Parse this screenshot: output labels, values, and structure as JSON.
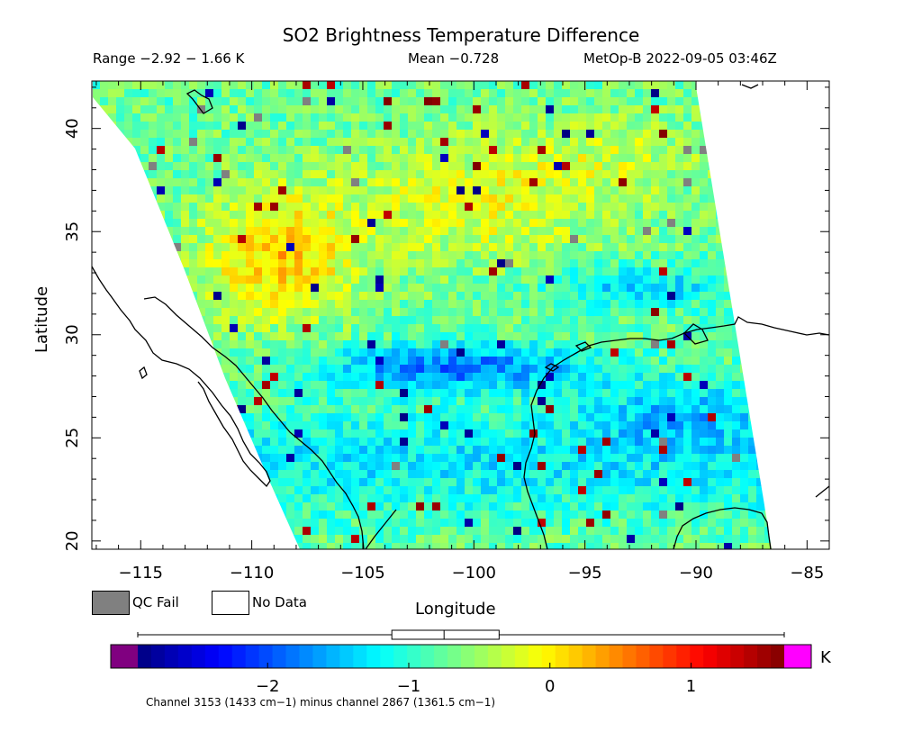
{
  "title": "SO2 Brightness Temperature Difference",
  "subtitle": {
    "range": "Range −2.92 − 1.66 K",
    "mean": "Mean −0.728",
    "satellite": "MetOp-B 2022-09-05 03:46Z"
  },
  "axes": {
    "xlabel": "Longitude",
    "ylabel": "Latitude",
    "x_ticks": [
      "−115",
      "−110",
      "−105",
      "−100",
      "−95",
      "−90",
      "−85"
    ],
    "x_tick_values": [
      -115,
      -110,
      -105,
      -100,
      -95,
      -90,
      -85
    ],
    "y_ticks": [
      "20",
      "25",
      "30",
      "35",
      "40"
    ],
    "y_tick_values": [
      20,
      25,
      30,
      35,
      40
    ],
    "lon_range": [
      -117.2,
      -84.0
    ],
    "lat_range": [
      19.6,
      42.3
    ]
  },
  "legend": {
    "qc_fail": "QC Fail",
    "no_data": "No Data",
    "qc_fail_color": "#808080",
    "no_data_color": "#ffffff"
  },
  "colorbar": {
    "unit": "K",
    "range": [
      -2.92,
      1.66
    ],
    "tick_labels": [
      "−2",
      "−1",
      "0",
      "1"
    ],
    "tick_values": [
      -2,
      -1,
      0,
      1
    ],
    "underflow_color": "#800080",
    "overflow_color": "#ff00ff",
    "boxplot": {
      "min": -2.92,
      "q1": -1.12,
      "median": -0.75,
      "q3": -0.36,
      "max": 1.66
    }
  },
  "footer": "Channel 3153 (1433 cm−1) minus channel 2867 (1361.5 cm−1)",
  "map_features": [
    "swath of SO2 brightness temperature difference values over western North America",
    "negative band near 28-29N",
    "positive values west of 105W near 30-37N",
    "Baja California",
    "Gulf of Mexico coastline",
    "Yucatan"
  ]
}
